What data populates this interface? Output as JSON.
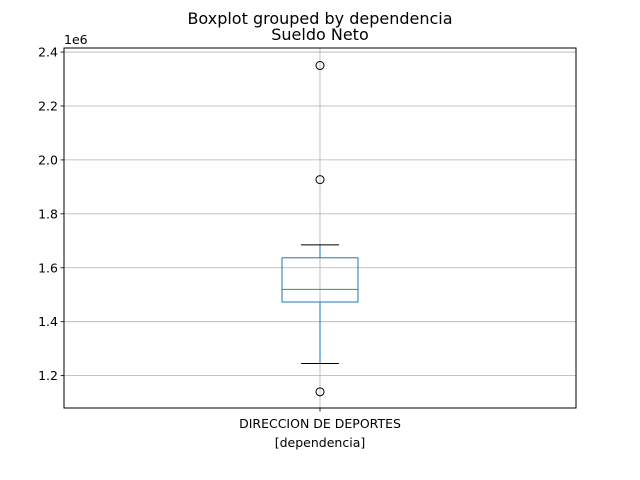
{
  "chart_data": {
    "type": "box",
    "suptitle": "Boxplot grouped by dependencia",
    "title": "Sueldo Neto",
    "xlabel": "[dependencia]",
    "ylabel": "",
    "offset_label": "1e6",
    "categories": [
      "DIRECCION DE DEPORTES"
    ],
    "ylim": [
      1.08,
      2.415
    ],
    "yticks": [
      1.2,
      1.4,
      1.6,
      1.8,
      2.0,
      2.2,
      2.4
    ],
    "ytick_labels": [
      "1.2",
      "1.4",
      "1.6",
      "1.8",
      "2.0",
      "2.2",
      "2.4"
    ],
    "grid": true,
    "boxes": [
      {
        "category": "DIRECCION DE DEPORTES",
        "whisker_low": 1.245,
        "q1": 1.473,
        "median": 1.52,
        "q3": 1.637,
        "whisker_high": 1.685,
        "fliers": [
          2.35,
          1.927,
          1.14
        ]
      }
    ],
    "colors": {
      "box": "#1f77b4",
      "median": "#2ca02c",
      "whisker": "#1f77b4",
      "cap": "#000000",
      "grid": "#b0b0b0"
    }
  }
}
